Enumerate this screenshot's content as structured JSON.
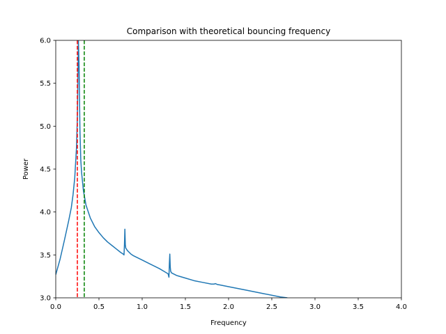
{
  "chart_data": {
    "type": "line",
    "title": "Comparison with theoretical bouncing frequency",
    "xlabel": "Frequency",
    "ylabel": "Power",
    "xlim": [
      0.0,
      4.0
    ],
    "ylim": [
      3.0,
      6.0
    ],
    "xticks": [
      "0.0",
      "0.5",
      "1.0",
      "1.5",
      "2.0",
      "2.5",
      "3.0",
      "3.5",
      "4.0"
    ],
    "yticks": [
      "3.0",
      "3.5",
      "4.0",
      "4.5",
      "5.0",
      "5.5",
      "6.0"
    ],
    "grid": false,
    "series": [
      {
        "color": "#1f77b4",
        "x": [
          0.0,
          0.05,
          0.1,
          0.15,
          0.18,
          0.2,
          0.22,
          0.24,
          0.25,
          0.26,
          0.262,
          0.27,
          0.28,
          0.29,
          0.3,
          0.32,
          0.35,
          0.4,
          0.45,
          0.5,
          0.55,
          0.6,
          0.65,
          0.7,
          0.75,
          0.78,
          0.79,
          0.795,
          0.8,
          0.805,
          0.81,
          0.83,
          0.87,
          0.9,
          1.0,
          1.1,
          1.2,
          1.25,
          1.3,
          1.31,
          1.315,
          1.32,
          1.325,
          1.33,
          1.34,
          1.36,
          1.4,
          1.5,
          1.6,
          1.7,
          1.8,
          1.83,
          1.85,
          1.87,
          1.9,
          2.0,
          2.2,
          2.4,
          2.6,
          2.68
        ],
        "y": [
          3.27,
          3.45,
          3.67,
          3.9,
          4.05,
          4.2,
          4.4,
          4.75,
          5.1,
          5.8,
          6.0,
          5.7,
          4.95,
          4.6,
          4.45,
          4.25,
          4.08,
          3.93,
          3.83,
          3.76,
          3.7,
          3.65,
          3.61,
          3.57,
          3.53,
          3.51,
          3.5,
          3.62,
          3.8,
          3.62,
          3.58,
          3.55,
          3.51,
          3.49,
          3.44,
          3.39,
          3.34,
          3.31,
          3.28,
          3.24,
          3.4,
          3.51,
          3.36,
          3.31,
          3.29,
          3.28,
          3.26,
          3.23,
          3.2,
          3.18,
          3.16,
          3.16,
          3.165,
          3.155,
          3.15,
          3.13,
          3.09,
          3.05,
          3.01,
          3.0
        ]
      }
    ],
    "vlines": [
      {
        "x": 0.25,
        "color": "#ff0000",
        "style": "dashed"
      },
      {
        "x": 0.33,
        "color": "#008000",
        "style": "dashed"
      }
    ]
  }
}
